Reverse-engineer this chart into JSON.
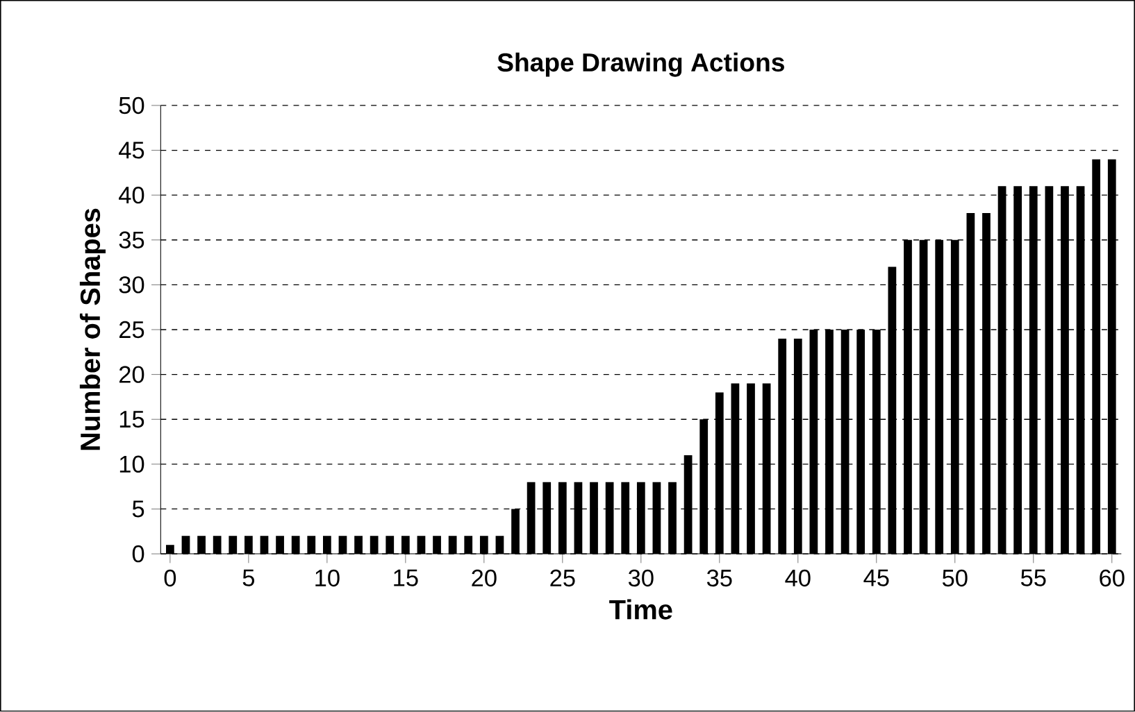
{
  "chart_data": {
    "type": "bar",
    "title": "Shape Drawing Actions",
    "xlabel": "Time",
    "ylabel": "Number of Shapes",
    "x": [
      0,
      1,
      2,
      3,
      4,
      5,
      6,
      7,
      8,
      9,
      10,
      11,
      12,
      13,
      14,
      15,
      16,
      17,
      18,
      19,
      20,
      21,
      22,
      23,
      24,
      25,
      26,
      27,
      28,
      29,
      30,
      31,
      32,
      33,
      34,
      35,
      36,
      37,
      38,
      39,
      40,
      41,
      42,
      43,
      44,
      45,
      46,
      47,
      48,
      49,
      50,
      51,
      52,
      53,
      54,
      55,
      56,
      57,
      58,
      59,
      60
    ],
    "values": [
      1,
      2,
      2,
      2,
      2,
      2,
      2,
      2,
      2,
      2,
      2,
      2,
      2,
      2,
      2,
      2,
      2,
      2,
      2,
      2,
      2,
      2,
      5,
      8,
      8,
      8,
      8,
      8,
      8,
      8,
      8,
      8,
      8,
      11,
      15,
      18,
      19,
      19,
      19,
      24,
      24,
      25,
      25,
      25,
      25,
      25,
      32,
      35,
      35,
      35,
      35,
      38,
      38,
      41,
      41,
      41,
      41,
      41,
      41,
      44,
      44
    ],
    "color": "#000000",
    "xlim": [
      -0.6,
      60.6
    ],
    "xticks": [
      0,
      5,
      10,
      15,
      20,
      25,
      30,
      35,
      40,
      45,
      50,
      55,
      60
    ],
    "ylim": [
      0,
      50
    ],
    "yticks": [
      0,
      5,
      10,
      15,
      20,
      25,
      30,
      35,
      40,
      45,
      50
    ],
    "grid": "y"
  }
}
